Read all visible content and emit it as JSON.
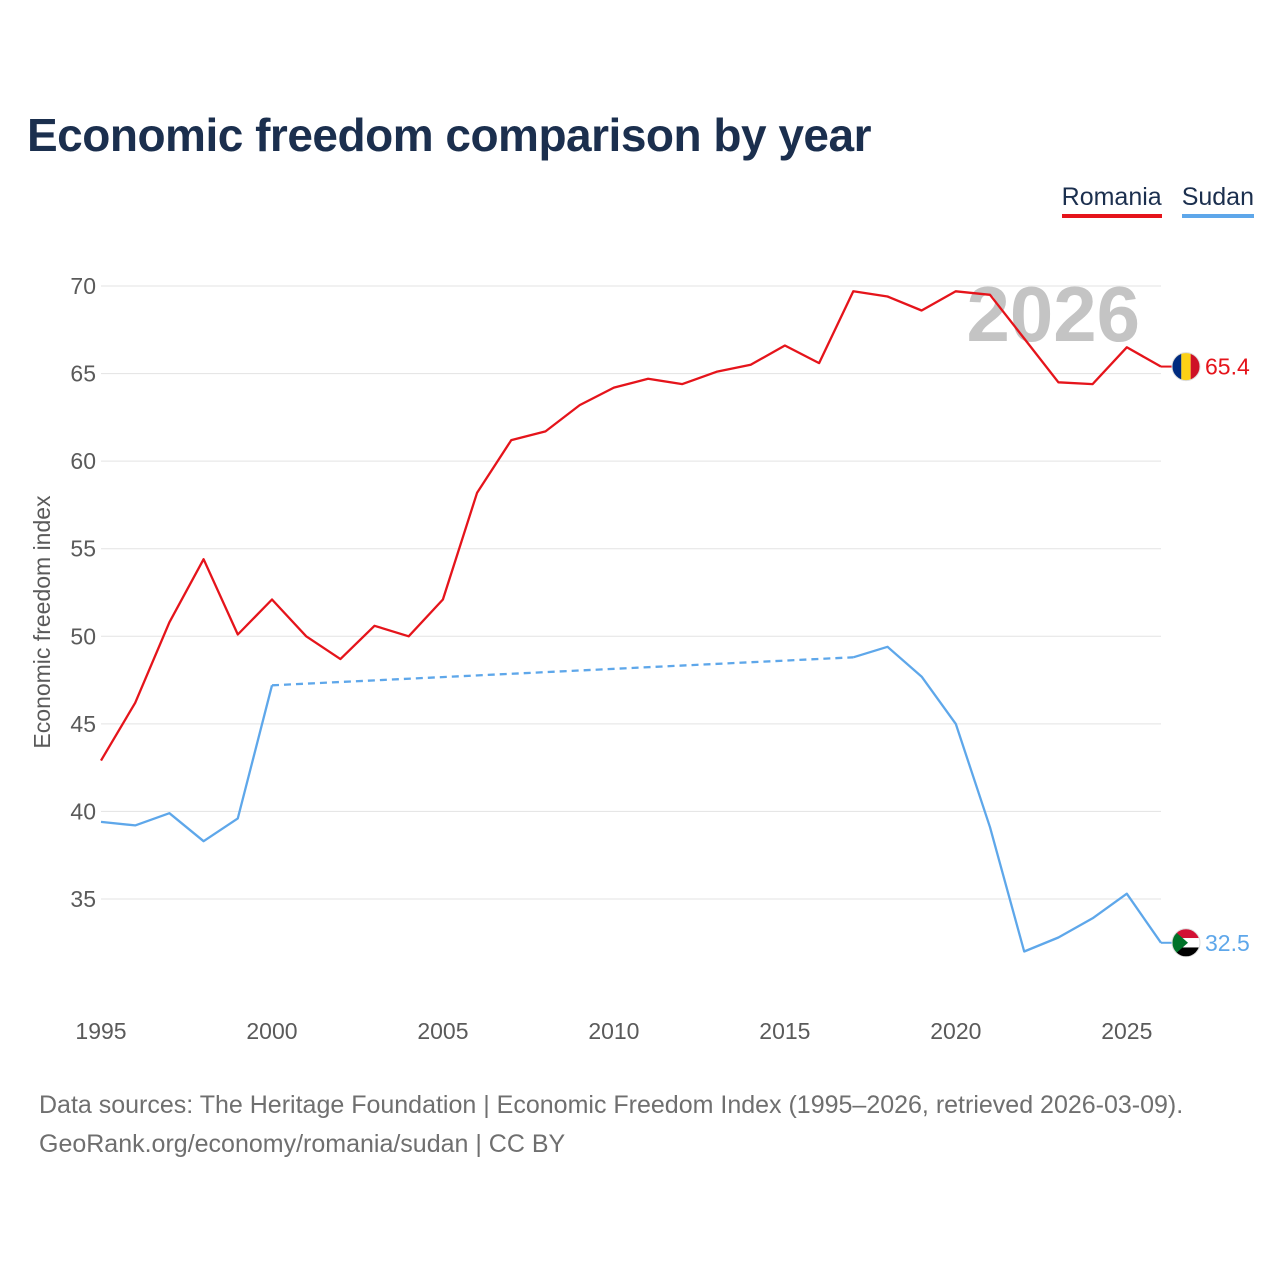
{
  "title": "Economic freedom comparison by year",
  "legend": [
    {
      "name": "Romania",
      "color": "#e5141b"
    },
    {
      "name": "Sudan",
      "color": "#5ea7ea"
    }
  ],
  "year_badge": "2026",
  "footer": {
    "line1": "Data sources: The Heritage Foundation | Economic Freedom Index (1995–2026, retrieved 2026-03-09).",
    "line2": "GeoRank.org/economy/romania/sudan | CC BY"
  },
  "chart_data": {
    "type": "line",
    "title": "Economic freedom comparison by year",
    "xlabel": "",
    "ylabel": "Economic freedom index",
    "xlim": [
      1995,
      2026
    ],
    "ylim": [
      30,
      72
    ],
    "yticks": [
      35,
      40,
      45,
      50,
      55,
      60,
      65,
      70
    ],
    "xticks": [
      1995,
      2000,
      2005,
      2010,
      2015,
      2020,
      2025
    ],
    "grid": true,
    "series": [
      {
        "name": "Romania",
        "color": "#e5141b",
        "end_label": "65.4",
        "flag": "romania-flag-icon",
        "points": [
          [
            1995,
            42.9
          ],
          [
            1996,
            46.2
          ],
          [
            1997,
            50.8
          ],
          [
            1998,
            54.4
          ],
          [
            1999,
            50.1
          ],
          [
            2000,
            52.1
          ],
          [
            2001,
            50.0
          ],
          [
            2002,
            48.7
          ],
          [
            2003,
            50.6
          ],
          [
            2004,
            50.0
          ],
          [
            2005,
            52.1
          ],
          [
            2006,
            58.2
          ],
          [
            2007,
            61.2
          ],
          [
            2008,
            61.7
          ],
          [
            2009,
            63.2
          ],
          [
            2010,
            64.2
          ],
          [
            2011,
            64.7
          ],
          [
            2012,
            64.4
          ],
          [
            2013,
            65.1
          ],
          [
            2014,
            65.5
          ],
          [
            2015,
            66.6
          ],
          [
            2016,
            65.6
          ],
          [
            2017,
            69.7
          ],
          [
            2018,
            69.4
          ],
          [
            2019,
            68.6
          ],
          [
            2020,
            69.7
          ],
          [
            2021,
            69.5
          ],
          [
            2022,
            67.0
          ],
          [
            2023,
            64.5
          ],
          [
            2024,
            64.4
          ],
          [
            2025,
            66.5
          ],
          [
            2026,
            65.4
          ]
        ]
      },
      {
        "name": "Sudan",
        "color": "#5ea7ea",
        "end_label": "32.5",
        "flag": "sudan-flag-icon",
        "gap": [
          2000,
          2017
        ],
        "points": [
          [
            1995,
            39.4
          ],
          [
            1996,
            39.2
          ],
          [
            1997,
            39.9
          ],
          [
            1998,
            38.3
          ],
          [
            1999,
            39.6
          ],
          [
            2000,
            47.2
          ],
          [
            2017,
            48.8
          ],
          [
            2018,
            49.4
          ],
          [
            2019,
            47.7
          ],
          [
            2020,
            45.0
          ],
          [
            2021,
            39.1
          ],
          [
            2022,
            32.0
          ],
          [
            2023,
            32.8
          ],
          [
            2024,
            33.9
          ],
          [
            2025,
            35.3
          ],
          [
            2026,
            32.5
          ]
        ]
      }
    ]
  }
}
